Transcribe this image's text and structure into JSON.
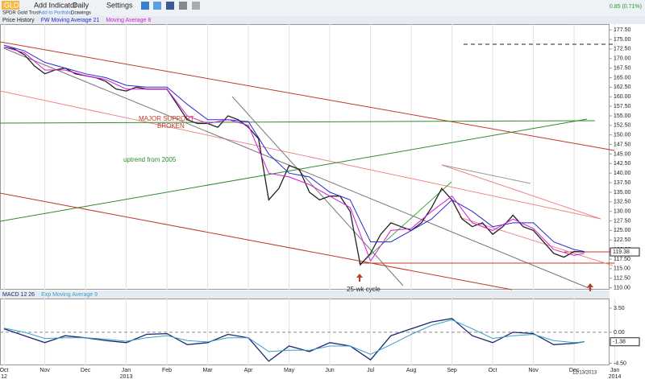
{
  "toolbar": {
    "symbol": "GLD",
    "name": "SPDR Gold Trust",
    "add_indicator": "Add Indicator",
    "period": "Daily",
    "settings": "Settings",
    "add_portfolio": "Add to Portfolio",
    "drawings": "Drawings",
    "change": "0.85 (0.71%)"
  },
  "chart_data": [
    {
      "type": "line",
      "last_value": 119.38,
      "ylim": [
        109.5,
        179
      ],
      "yticks": [
        {
          "value": 110,
          "label": "110.00"
        },
        {
          "value": 112.5,
          "label": "112.50"
        },
        {
          "value": 115,
          "label": "115.00"
        },
        {
          "value": 117.5,
          "label": "117.50"
        },
        {
          "value": 120,
          "label": "120.00"
        },
        {
          "value": 122.5,
          "label": "122.50"
        },
        {
          "value": 125,
          "label": "125.00"
        },
        {
          "value": 127.5,
          "label": "127.50"
        },
        {
          "value": 130,
          "label": "130.00"
        },
        {
          "value": 132.5,
          "label": "132.50"
        },
        {
          "value": 135,
          "label": "135.00"
        },
        {
          "value": 137.5,
          "label": "137.50"
        },
        {
          "value": 140,
          "label": "140.00"
        },
        {
          "value": 142.5,
          "label": "142.50"
        },
        {
          "value": 145,
          "label": "145.00"
        },
        {
          "value": 147.5,
          "label": "147.50"
        },
        {
          "value": 150,
          "label": "150.00"
        },
        {
          "value": 152.5,
          "label": "152.50"
        },
        {
          "value": 155,
          "label": "155.00"
        },
        {
          "value": 157.5,
          "label": "157.50"
        },
        {
          "value": 160,
          "label": "160.00"
        },
        {
          "value": 162.5,
          "label": "162.50"
        },
        {
          "value": 165,
          "label": "165.00"
        },
        {
          "value": 167.5,
          "label": "167.50"
        },
        {
          "value": 170,
          "label": "170.00"
        },
        {
          "value": 172.5,
          "label": "172.50"
        },
        {
          "value": 175,
          "label": "175.00"
        },
        {
          "value": 177.5,
          "label": "177.50"
        }
      ],
      "annotations": [
        "MAJOR SUPPORT",
        "BROKEN",
        "uptrend from 2005",
        "25-wk cycle"
      ],
      "series": [
        {
          "name": "Price History",
          "color": "#222222",
          "x": [
            0,
            0.25,
            0.5,
            0.75,
            1,
            1.25,
            1.5,
            1.75,
            2,
            2.25,
            2.5,
            2.75,
            3,
            3.25,
            3.5,
            3.75,
            4,
            4.25,
            4.5,
            4.75,
            5,
            5.25,
            5.5,
            5.75,
            6,
            6.25,
            6.5,
            6.75,
            7,
            7.25,
            7.5,
            7.75,
            8,
            8.25,
            8.5,
            8.75,
            9,
            9.25,
            9.5,
            9.75,
            10,
            10.25,
            10.5,
            10.75,
            11,
            11.25,
            11.5,
            11.75,
            12,
            12.25,
            12.5,
            12.75,
            13,
            13.25,
            13.5,
            13.75,
            14,
            14.25
          ],
          "values": [
            173,
            172.5,
            171,
            168,
            166,
            167,
            167.5,
            166,
            165.5,
            165,
            164,
            162,
            161.5,
            162.5,
            162,
            162,
            162,
            158,
            154,
            153,
            153,
            152,
            155,
            154,
            152,
            149,
            133,
            136,
            142,
            141,
            135,
            133,
            134,
            134,
            130,
            116,
            119,
            124,
            127,
            126,
            125,
            127,
            131,
            136,
            133,
            128,
            126,
            127,
            124,
            126,
            129,
            126,
            125,
            122,
            119,
            118,
            119.5,
            119.38
          ]
        },
        {
          "name": "FW Moving Average 21",
          "color": "#2a2ad0",
          "x": [
            0,
            0.5,
            1,
            1.5,
            2,
            2.5,
            3,
            3.5,
            4,
            4.5,
            5,
            5.5,
            6,
            6.5,
            7,
            7.5,
            8,
            8.5,
            9,
            9.5,
            10,
            10.5,
            11,
            11.5,
            12,
            12.5,
            13,
            13.5,
            14,
            14.25
          ],
          "values": [
            173.5,
            172,
            169,
            167.5,
            166,
            165,
            163,
            162.5,
            162.5,
            158,
            154,
            154,
            153.5,
            145,
            140,
            139,
            135,
            133,
            122,
            122,
            125,
            128,
            133,
            130,
            126,
            127,
            127,
            122,
            120,
            119.5
          ]
        },
        {
          "name": "Moving Average 8",
          "color": "#d81bd8",
          "x": [
            0,
            0.5,
            1,
            1.5,
            2,
            2.5,
            3,
            3.5,
            4,
            4.5,
            5,
            5.5,
            6,
            6.5,
            7,
            7.5,
            8,
            8.5,
            9,
            9.5,
            10,
            10.5,
            11,
            11.5,
            12,
            12.5,
            13,
            13.5,
            14,
            14.25
          ],
          "values": [
            173,
            171.5,
            167,
            167,
            165.5,
            164.5,
            162,
            162,
            162,
            155,
            153,
            154,
            152.5,
            140,
            139,
            137,
            134,
            131,
            117,
            125,
            125.5,
            130,
            134,
            127,
            125,
            128,
            125.5,
            120,
            118.5,
            119
          ]
        }
      ]
    },
    {
      "type": "line",
      "last_value": -1.38,
      "date_label": "12/13/2013",
      "ylim": [
        -4.8,
        4.9
      ],
      "yticks": [
        {
          "value": 3.5,
          "label": "3.50"
        },
        {
          "value": 0,
          "label": "0.00"
        },
        {
          "value": -4.5,
          "label": "-4.50"
        }
      ],
      "xlim": [
        -0.1,
        14.85
      ],
      "xticks": [
        {
          "value": 0,
          "label": "Oct 12"
        },
        {
          "value": 1,
          "label": "Nov"
        },
        {
          "value": 2,
          "label": "Dec"
        },
        {
          "value": 3,
          "label": "Jan 2013"
        },
        {
          "value": 4,
          "label": "Feb"
        },
        {
          "value": 5,
          "label": "Mar"
        },
        {
          "value": 6,
          "label": "Apr"
        },
        {
          "value": 7,
          "label": "May"
        },
        {
          "value": 8,
          "label": "Jun"
        },
        {
          "value": 9,
          "label": "Jul"
        },
        {
          "value": 10,
          "label": "Aug"
        },
        {
          "value": 11,
          "label": "Sep"
        },
        {
          "value": 12,
          "label": "Oct"
        },
        {
          "value": 13,
          "label": "Nov"
        },
        {
          "value": 14,
          "label": "Dec"
        },
        {
          "value": 15,
          "label": "Jan 2014"
        }
      ],
      "series": [
        {
          "name": "MACD 12 26",
          "color": "#1a2a6e",
          "x": [
            0,
            0.5,
            1,
            1.5,
            2,
            2.5,
            3,
            3.5,
            4,
            4.5,
            5,
            5.5,
            6,
            6.5,
            7,
            7.5,
            8,
            8.5,
            9,
            9.5,
            10,
            10.5,
            11,
            11.5,
            12,
            12.5,
            13,
            13.5,
            14,
            14.25
          ],
          "values": [
            0.5,
            -0.5,
            -1.5,
            -0.5,
            -0.8,
            -1.2,
            -1.5,
            -0.3,
            -0.2,
            -1.8,
            -1.5,
            -0.3,
            -0.8,
            -4.2,
            -2,
            -2.8,
            -1.5,
            -2,
            -4,
            -0.5,
            0.5,
            1.5,
            2,
            -0.5,
            -1.5,
            0,
            -0.2,
            -1.8,
            -1.6,
            -1.38
          ]
        },
        {
          "name": "Exp Moving Average 9",
          "color": "#3aa0c8",
          "x": [
            0,
            0.5,
            1,
            1.5,
            2,
            2.5,
            3,
            3.5,
            4,
            4.5,
            5,
            5.5,
            6,
            6.5,
            7,
            7.5,
            8,
            8.5,
            9,
            9.5,
            10,
            10.5,
            11,
            11.5,
            12,
            12.5,
            13,
            13.5,
            14,
            14.25
          ],
          "values": [
            0.6,
            0,
            -0.9,
            -0.8,
            -0.8,
            -1,
            -1.3,
            -0.8,
            -0.5,
            -1.2,
            -1.4,
            -0.8,
            -0.8,
            -2.8,
            -2.6,
            -2.6,
            -2,
            -2,
            -3.2,
            -1.8,
            -0.3,
            1,
            1.8,
            0.5,
            -0.9,
            -0.5,
            -0.3,
            -1.2,
            -1.5,
            -1.4
          ]
        }
      ]
    }
  ]
}
